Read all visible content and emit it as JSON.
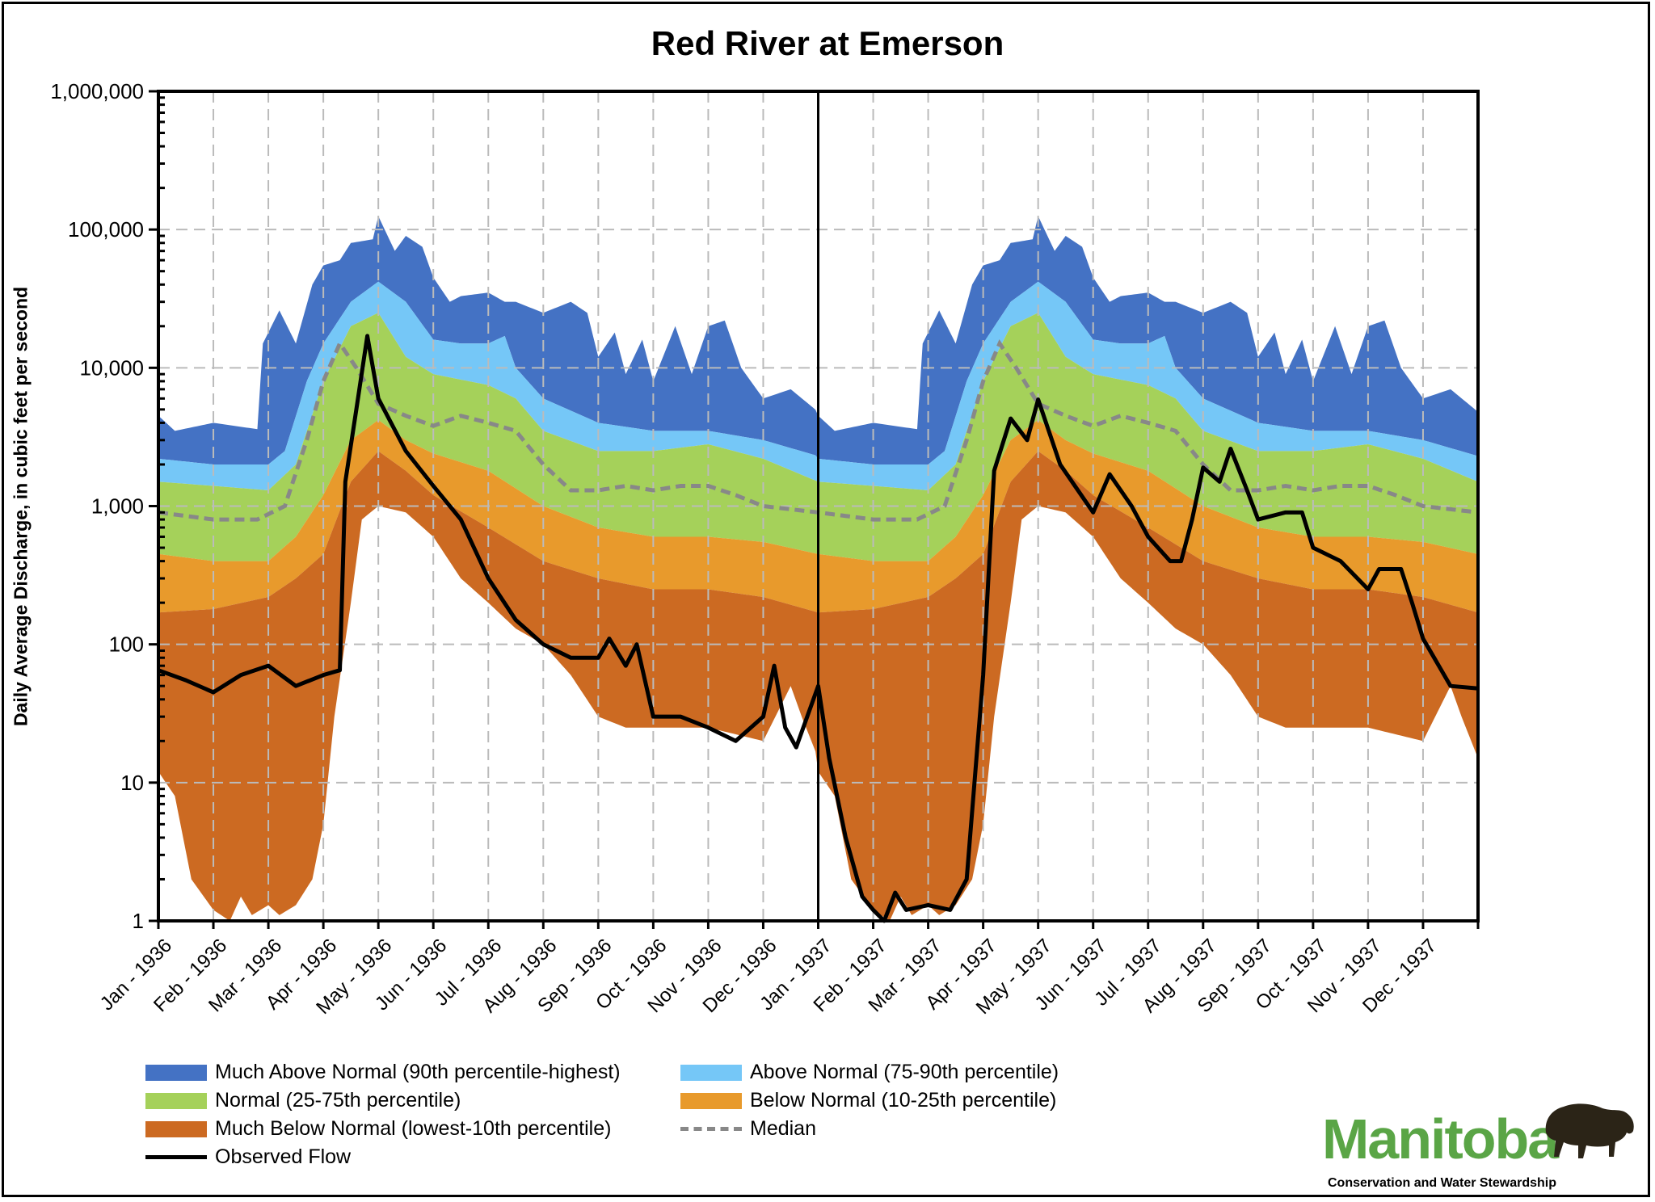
{
  "chart_data": {
    "type": "area",
    "title": "Red River at Emerson",
    "ylabel": "Daily Average Discharge, in cubic feet per second",
    "xlabel": "",
    "yscale": "log",
    "ylim": [
      1,
      1000000
    ],
    "y_ticks": [
      "1",
      "10",
      "100",
      "1,000",
      "10,000",
      "100,000",
      "1,000,000"
    ],
    "x_ticks": [
      "Jan - 1936",
      "Feb - 1936",
      "Mar - 1936",
      "Apr - 1936",
      "May - 1936",
      "Jun - 1936",
      "Jul - 1936",
      "Aug - 1936",
      "Sep - 1936",
      "Oct - 1936",
      "Nov - 1936",
      "Dec - 1936",
      "Jan - 1937",
      "Feb - 1937",
      "Mar - 1937",
      "Apr - 1937",
      "May - 1937",
      "Jun - 1937",
      "Jul - 1937",
      "Aug - 1937",
      "Sep - 1937",
      "Oct - 1937",
      "Nov - 1937",
      "Dec - 1937"
    ],
    "grid": true,
    "legend_placement": "bottom",
    "colors": {
      "much_above": "#4472C4",
      "above": "#75C7F7",
      "normal": "#A5D15A",
      "below": "#E89A2C",
      "much_below": "#CC6A22",
      "median": "#888888",
      "observed": "#000000"
    },
    "legend": {
      "much_above": "Much Above Normal (90th percentile-highest)",
      "above": "Above Normal (75-90th percentile)",
      "normal": "Normal (25-75th percentile)",
      "below": "Below Normal (10-25th percentile)",
      "much_below": "Much Below Normal (lowest-10th percentile)",
      "median": "Median",
      "observed": "Observed Flow"
    },
    "percentile_curves_by_month_of_year": {
      "max": [
        [
          0,
          4500
        ],
        [
          0.3,
          3500
        ],
        [
          1,
          4000
        ],
        [
          1.8,
          3600
        ],
        [
          1.9,
          15000
        ],
        [
          2.2,
          26000
        ],
        [
          2.5,
          15000
        ],
        [
          2.8,
          40000
        ],
        [
          3.0,
          55000
        ],
        [
          3.3,
          60000
        ],
        [
          3.5,
          80000
        ],
        [
          3.9,
          85000
        ],
        [
          4.0,
          125000
        ],
        [
          4.3,
          70000
        ],
        [
          4.5,
          90000
        ],
        [
          4.8,
          75000
        ],
        [
          5.0,
          45000
        ],
        [
          5.3,
          30000
        ],
        [
          5.5,
          33000
        ],
        [
          6.0,
          35000
        ],
        [
          6.3,
          30000
        ],
        [
          6.5,
          30000
        ],
        [
          7.0,
          25000
        ],
        [
          7.5,
          30000
        ],
        [
          7.8,
          25000
        ],
        [
          8.0,
          12000
        ],
        [
          8.3,
          18000
        ],
        [
          8.5,
          9000
        ],
        [
          8.8,
          16000
        ],
        [
          9.0,
          8000
        ],
        [
          9.4,
          20000
        ],
        [
          9.7,
          9000
        ],
        [
          10.0,
          20000
        ],
        [
          10.3,
          22000
        ],
        [
          10.6,
          10000
        ],
        [
          11.0,
          6000
        ],
        [
          11.5,
          7000
        ],
        [
          12,
          4800
        ]
      ],
      "p90": [
        [
          0,
          2200
        ],
        [
          1,
          2000
        ],
        [
          2,
          2000
        ],
        [
          2.3,
          2500
        ],
        [
          2.7,
          8000
        ],
        [
          3,
          15000
        ],
        [
          3.5,
          30000
        ],
        [
          4,
          42000
        ],
        [
          4.5,
          30000
        ],
        [
          5,
          16000
        ],
        [
          5.5,
          15000
        ],
        [
          6,
          15000
        ],
        [
          6.3,
          17000
        ],
        [
          6.5,
          10000
        ],
        [
          7,
          6000
        ],
        [
          8,
          4000
        ],
        [
          9,
          3500
        ],
        [
          10,
          3500
        ],
        [
          11,
          3000
        ],
        [
          12,
          2300
        ]
      ],
      "p75": [
        [
          0,
          1500
        ],
        [
          1,
          1400
        ],
        [
          2,
          1300
        ],
        [
          2.5,
          2000
        ],
        [
          3,
          8000
        ],
        [
          3.5,
          20000
        ],
        [
          4,
          25000
        ],
        [
          4.5,
          12000
        ],
        [
          5,
          9000
        ],
        [
          6,
          7500
        ],
        [
          6.5,
          6000
        ],
        [
          7,
          3500
        ],
        [
          8,
          2500
        ],
        [
          9,
          2500
        ],
        [
          10,
          2800
        ],
        [
          11,
          2200
        ],
        [
          12,
          1500
        ]
      ],
      "p25": [
        [
          0,
          450
        ],
        [
          1,
          400
        ],
        [
          2,
          400
        ],
        [
          2.5,
          600
        ],
        [
          3,
          1200
        ],
        [
          3.5,
          3000
        ],
        [
          4,
          4200
        ],
        [
          4.5,
          3000
        ],
        [
          5,
          2400
        ],
        [
          6,
          1800
        ],
        [
          7,
          1000
        ],
        [
          8,
          700
        ],
        [
          9,
          600
        ],
        [
          10,
          600
        ],
        [
          11,
          550
        ],
        [
          12,
          450
        ]
      ],
      "p10": [
        [
          0,
          170
        ],
        [
          1,
          180
        ],
        [
          2,
          220
        ],
        [
          2.5,
          300
        ],
        [
          3,
          450
        ],
        [
          3.5,
          1500
        ],
        [
          4,
          2500
        ],
        [
          4.5,
          1800
        ],
        [
          5,
          1200
        ],
        [
          6,
          700
        ],
        [
          7,
          400
        ],
        [
          8,
          300
        ],
        [
          9,
          250
        ],
        [
          10,
          250
        ],
        [
          11,
          220
        ],
        [
          12,
          170
        ]
      ],
      "min": [
        [
          0,
          12
        ],
        [
          0.3,
          8
        ],
        [
          0.6,
          2
        ],
        [
          1,
          1.2
        ],
        [
          1.3,
          1
        ],
        [
          1.5,
          1.5
        ],
        [
          1.7,
          1.1
        ],
        [
          2,
          1.3
        ],
        [
          2.2,
          1.1
        ],
        [
          2.5,
          1.3
        ],
        [
          2.8,
          2
        ],
        [
          3,
          5
        ],
        [
          3.2,
          30
        ],
        [
          3.5,
          200
        ],
        [
          3.7,
          800
        ],
        [
          4,
          1000
        ],
        [
          4.5,
          900
        ],
        [
          5,
          600
        ],
        [
          5.5,
          300
        ],
        [
          6,
          200
        ],
        [
          6.5,
          130
        ],
        [
          7,
          100
        ],
        [
          7.5,
          60
        ],
        [
          8,
          30
        ],
        [
          8.5,
          25
        ],
        [
          9,
          25
        ],
        [
          10,
          25
        ],
        [
          11,
          20
        ],
        [
          11.5,
          50
        ],
        [
          11.7,
          30
        ],
        [
          12,
          15
        ]
      ],
      "median": [
        [
          0,
          900
        ],
        [
          1,
          800
        ],
        [
          1.8,
          800
        ],
        [
          2.3,
          1000
        ],
        [
          2.7,
          3000
        ],
        [
          3,
          8000
        ],
        [
          3.3,
          15000
        ],
        [
          3.6,
          10000
        ],
        [
          4,
          5500
        ],
        [
          4.5,
          4500
        ],
        [
          5,
          3800
        ],
        [
          5.5,
          4500
        ],
        [
          6,
          4000
        ],
        [
          6.5,
          3500
        ],
        [
          7,
          2000
        ],
        [
          7.5,
          1300
        ],
        [
          8,
          1300
        ],
        [
          8.5,
          1400
        ],
        [
          9,
          1300
        ],
        [
          9.5,
          1400
        ],
        [
          10,
          1400
        ],
        [
          10.5,
          1200
        ],
        [
          11,
          1000
        ],
        [
          12,
          900
        ]
      ]
    },
    "observed": {
      "1936": [
        [
          0,
          65
        ],
        [
          0.5,
          55
        ],
        [
          1,
          45
        ],
        [
          1.5,
          60
        ],
        [
          2,
          70
        ],
        [
          2.5,
          50
        ],
        [
          3,
          60
        ],
        [
          3.3,
          65
        ],
        [
          3.4,
          1500
        ],
        [
          3.6,
          5000
        ],
        [
          3.8,
          17000
        ],
        [
          4,
          6000
        ],
        [
          4.5,
          2500
        ],
        [
          5,
          1400
        ],
        [
          5.5,
          800
        ],
        [
          6,
          300
        ],
        [
          6.5,
          150
        ],
        [
          7,
          100
        ],
        [
          7.5,
          80
        ],
        [
          8,
          80
        ],
        [
          8.2,
          110
        ],
        [
          8.5,
          70
        ],
        [
          8.7,
          100
        ],
        [
          9,
          30
        ],
        [
          9.5,
          30
        ],
        [
          10,
          25
        ],
        [
          10.5,
          20
        ],
        [
          11,
          30
        ],
        [
          11.2,
          70
        ],
        [
          11.4,
          25
        ],
        [
          11.6,
          18
        ],
        [
          12,
          50
        ]
      ],
      "1937": [
        [
          0,
          50
        ],
        [
          0.2,
          15
        ],
        [
          0.5,
          4
        ],
        [
          0.8,
          1.5
        ],
        [
          1,
          1.2
        ],
        [
          1.2,
          1
        ],
        [
          1.4,
          1.6
        ],
        [
          1.6,
          1.2
        ],
        [
          2,
          1.3
        ],
        [
          2.4,
          1.2
        ],
        [
          2.7,
          2
        ],
        [
          3,
          60
        ],
        [
          3.2,
          1800
        ],
        [
          3.5,
          4300
        ],
        [
          3.8,
          3000
        ],
        [
          4,
          5900
        ],
        [
          4.4,
          2000
        ],
        [
          5,
          900
        ],
        [
          5.3,
          1700
        ],
        [
          5.7,
          1000
        ],
        [
          6,
          600
        ],
        [
          6.4,
          400
        ],
        [
          6.6,
          400
        ],
        [
          6.8,
          800
        ],
        [
          7,
          1900
        ],
        [
          7.3,
          1500
        ],
        [
          7.5,
          2600
        ],
        [
          7.8,
          1300
        ],
        [
          8,
          800
        ],
        [
          8.5,
          900
        ],
        [
          8.8,
          900
        ],
        [
          9,
          500
        ],
        [
          9.5,
          400
        ],
        [
          10,
          250
        ],
        [
          10.2,
          350
        ],
        [
          10.6,
          350
        ],
        [
          10.8,
          200
        ],
        [
          11,
          110
        ],
        [
          11.5,
          50
        ],
        [
          12,
          48
        ]
      ]
    }
  },
  "logo": {
    "name": "Manitoba",
    "subtitle": "Conservation and Water Stewardship"
  }
}
